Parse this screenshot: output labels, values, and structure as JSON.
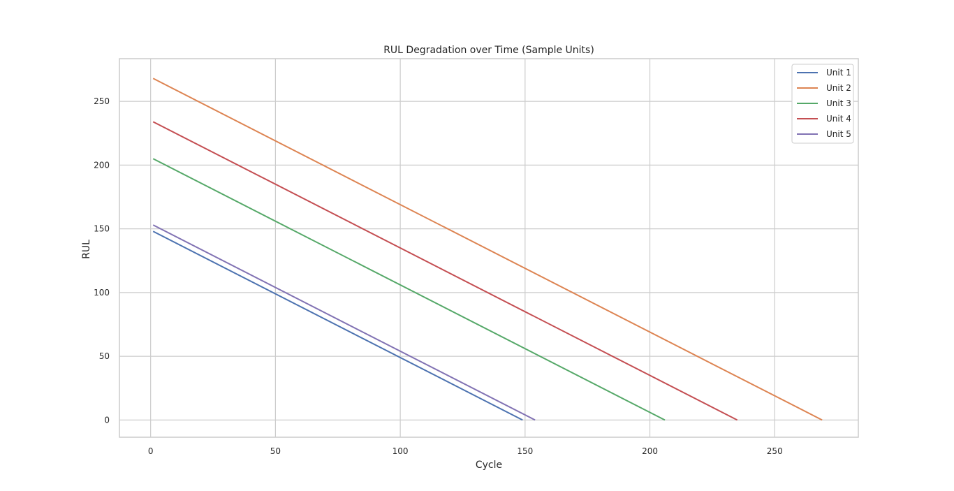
{
  "chart_data": {
    "type": "line",
    "title": "RUL Degradation over Time (Sample Units)",
    "xlabel": "Cycle",
    "ylabel": "RUL",
    "xlim": [
      -12.5,
      283.5
    ],
    "ylim": [
      -13.5,
      283.5
    ],
    "xticks": [
      0,
      50,
      100,
      150,
      200,
      250
    ],
    "yticks": [
      0,
      50,
      100,
      150,
      200,
      250
    ],
    "grid": true,
    "legend_position": "top-right",
    "series": [
      {
        "name": "Unit 1",
        "color": "#4c72b0",
        "x": [
          1,
          149
        ],
        "y": [
          148,
          0
        ]
      },
      {
        "name": "Unit 2",
        "color": "#dd8452",
        "x": [
          1,
          269
        ],
        "y": [
          268,
          0
        ]
      },
      {
        "name": "Unit 3",
        "color": "#55a868",
        "x": [
          1,
          206
        ],
        "y": [
          205,
          0
        ]
      },
      {
        "name": "Unit 4",
        "color": "#c44e52",
        "x": [
          1,
          235
        ],
        "y": [
          234,
          0
        ]
      },
      {
        "name": "Unit 5",
        "color": "#8172b3",
        "x": [
          1,
          154
        ],
        "y": [
          153,
          0
        ]
      }
    ]
  }
}
